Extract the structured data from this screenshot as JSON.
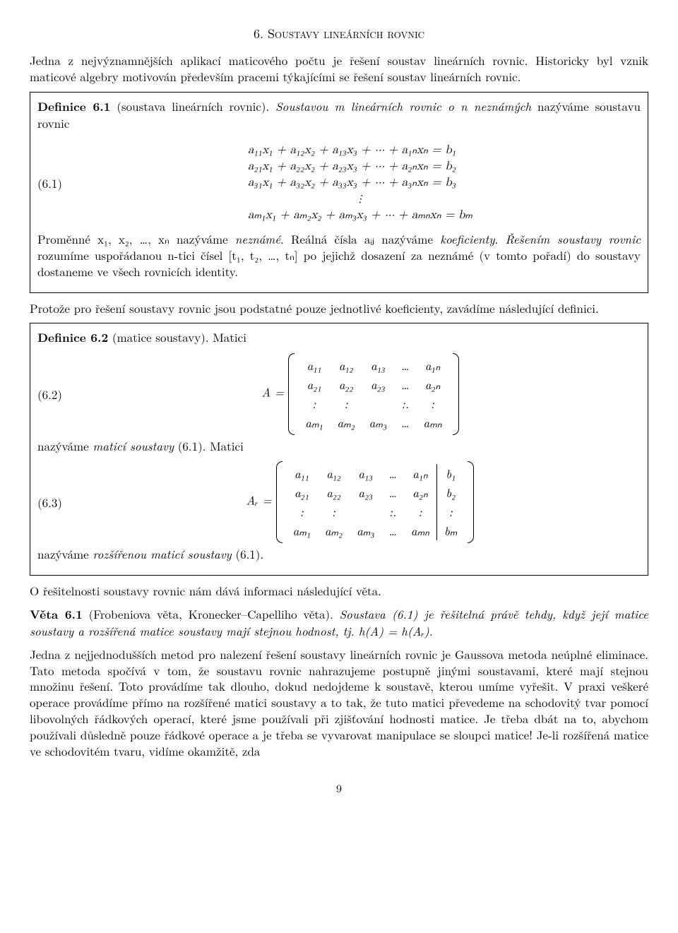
{
  "title": "6. Soustavy lineárních rovnic",
  "intro": "Jedna z nejvýznamnějších aplikací maticového počtu je řešení soustav lineárních rovnic. Historicky byl vznik maticové algebry motivován především pracemi týkajícími se řešení soustav lineárních rovnic.",
  "def61": {
    "label": "Definice 6.1",
    "name": "(soustava lineárních rovnic).",
    "lead": "Soustavou m lineárních rovnic o n neznámých",
    "lead2": "nazýváme soustavu rovnic",
    "eqnum": "(6.1)",
    "lines": [
      "a₁₁x₁ + a₁₂x₂ + a₁₃x₃ + ··· + a₁ₙxₙ = b₁",
      "a₂₁x₁ + a₂₂x₂ + a₂₃x₃ + ··· + a₂ₙxₙ = b₂",
      "a₃₁x₁ + a₃₂x₂ + a₃₃x₃ + ··· + a₃ₙxₙ = b₃",
      "⋮",
      "aₘ₁x₁ + aₘ₂x₂ + aₘ₃x₃ + ··· + aₘₙxₙ = bₘ"
    ],
    "trail1": "Proměnné x₁, x₂, …, xₙ nazýváme ",
    "trail1b": "neznámé",
    "trail1c": ". Reálná čísla aᵢⱼ nazýváme ",
    "trail1d": "koeficienty",
    "trail1e": ". ",
    "trail1f": "Řešením soustavy rovnic",
    "trail2": " rozumíme uspořádanou n-tici čísel [t₁, t₂, …, tₙ] po jejichž dosazení za neznámé (v tomto pořadí) do soustavy dostaneme ve všech rovnicích identity."
  },
  "p2": "Protože pro řešení soustavy rovnic jsou podstatné pouze jednotlivé koeficienty, zavádíme následující definici.",
  "def62": {
    "label": "Definice 6.2",
    "name": "(matice soustavy).",
    "lead": " Matici",
    "eqnum_a": "(6.2)",
    "eq_lhs_a": "A =",
    "matrix_a": [
      [
        "a₁₁",
        "a₁₂",
        "a₁₃",
        "…",
        "a₁ₙ"
      ],
      [
        "a₂₁",
        "a₂₂",
        "a₂₃",
        "…",
        "a₂ₙ"
      ],
      [
        ":",
        ":",
        "",
        ":.",
        ":"
      ],
      [
        "aₘ₁",
        "aₘ₂",
        "aₘ₃",
        "…",
        "aₘₙ"
      ]
    ],
    "mid1a": "nazýváme ",
    "mid1b": "maticí soustavy",
    "mid1c": " (6.1). Matici",
    "eqnum_b": "(6.3)",
    "eq_lhs_b": "Aᵣ =",
    "matrix_b": [
      [
        "a₁₁",
        "a₁₂",
        "a₁₃",
        "…",
        "a₁ₙ",
        "b₁"
      ],
      [
        "a₂₁",
        "a₂₂",
        "a₂₃",
        "…",
        "a₂ₙ",
        "b₂"
      ],
      [
        ":",
        ":",
        "",
        ":.",
        ":",
        ":"
      ],
      [
        "aₘ₁",
        "aₘ₂",
        "aₘ₃",
        "…",
        "aₘₙ",
        "bₘ"
      ]
    ],
    "tail1a": "nazýváme ",
    "tail1b": "rozšířenou maticí soustavy",
    "tail1c": " (6.1)."
  },
  "p3": "O řešitelnosti soustavy rovnic nám dává informaci následující věta.",
  "veta61": {
    "label": "Věta 6.1",
    "name": "(Frobeniova věta, Kronecker–Capelliho věta).",
    "body": " Soustava (6.1) je řešitelná právě tehdy, když její matice soustavy a rozšířená matice soustavy mají stejnou hodnost, tj. h(A) = h(Aᵣ)."
  },
  "p4": "Jedna z nejjednodušších metod pro nalezení řešení soustavy lineárních rovnic je Gaussova metoda neúplné eliminace. Tato metoda spočívá v tom, že soustavu rovnic nahrazujeme postupně jinými soustavami, které mají stejnou množinu řešení. Toto provádíme tak dlouho, dokud nedojdeme k soustavě, kterou umíme vyřešit. V praxi veškeré operace provádíme přímo na rozšířené matici soustavy a to tak, že tuto matici převedeme na schodovitý tvar pomocí libovolných řádkových operací, které jsme používali při zjišťování hodnosti matice. Je třeba dbát na to, abychom používali důsledně pouze řádkové operace a je třeba se vyvarovat manipulace se sloupci matice! Je-li rozšířená matice ve schodovitém tvaru, vidíme okamžitě, zda",
  "page": "9"
}
